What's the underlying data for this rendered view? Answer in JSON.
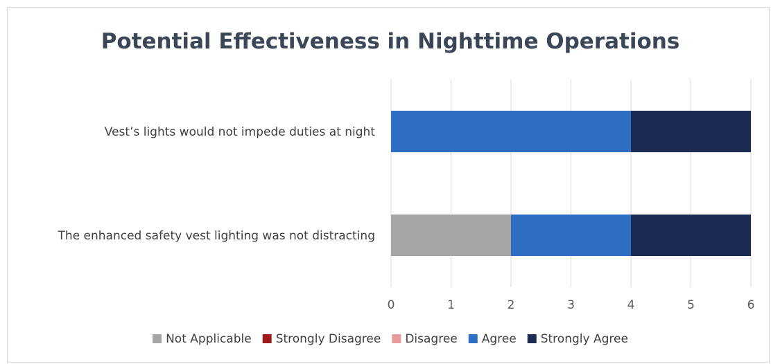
{
  "chart_data": {
    "type": "bar",
    "orientation": "horizontal",
    "stacked": true,
    "title": "Potential Effectiveness in Nighttime Operations",
    "xlabel": "",
    "ylabel": "",
    "categories": [
      "Vest’s lights would not impede duties at night",
      "The enhanced safety vest lighting was not distracting"
    ],
    "series": [
      {
        "name": "Not Applicable",
        "color": "#a5a5a5",
        "values": [
          0,
          2
        ]
      },
      {
        "name": "Strongly Disagree",
        "color": "#9e1b1b",
        "values": [
          0,
          0
        ]
      },
      {
        "name": "Disagree",
        "color": "#e89a9a",
        "values": [
          0,
          0
        ]
      },
      {
        "name": "Agree",
        "color": "#2e6fc4",
        "values": [
          4,
          2
        ]
      },
      {
        "name": "Strongly Agree",
        "color": "#1b2b52",
        "values": [
          2,
          2
        ]
      }
    ],
    "xlim": [
      0,
      6
    ],
    "x_ticks": [
      "0",
      "1",
      "2",
      "3",
      "4",
      "5",
      "6"
    ],
    "grid": true,
    "legend_position": "bottom"
  }
}
